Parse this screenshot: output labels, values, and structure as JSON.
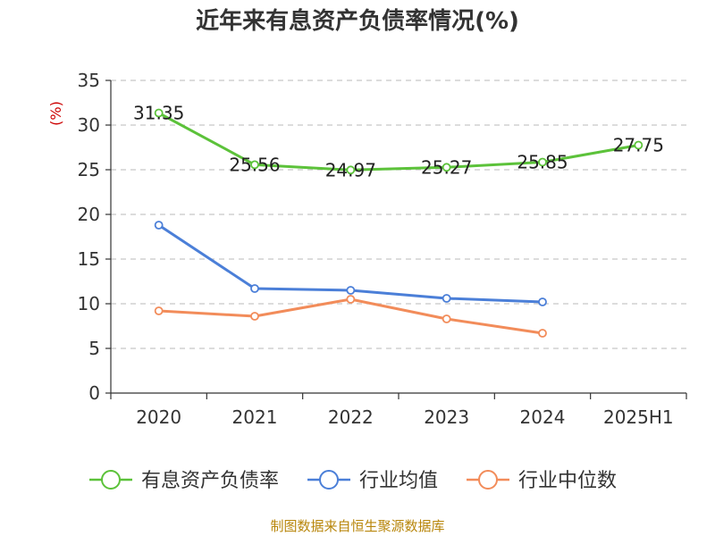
{
  "chart_data": {
    "type": "line",
    "title": "近年来有息资产负债率情况(%)",
    "ylabel": "(%)",
    "xlabel": "",
    "categories": [
      "2020",
      "2021",
      "2022",
      "2023",
      "2024",
      "2025H1"
    ],
    "ylim": [
      0,
      35
    ],
    "yticks": [
      0,
      5,
      10,
      15,
      20,
      25,
      30,
      35
    ],
    "grid": true,
    "legend_position": "bottom",
    "series": [
      {
        "name": "有息资产负债率",
        "color": "#5cc23a",
        "values": [
          31.35,
          25.56,
          24.97,
          25.27,
          25.85,
          27.75
        ],
        "labels": [
          "31.35",
          "25.56",
          "24.97",
          "25.27",
          "25.85",
          "27.75"
        ]
      },
      {
        "name": "行业均值",
        "color": "#4b7fd8",
        "values": [
          18.8,
          11.7,
          11.5,
          10.6,
          10.2,
          null
        ]
      },
      {
        "name": "行业中位数",
        "color": "#f28c5a",
        "values": [
          9.2,
          8.6,
          10.5,
          8.3,
          6.7,
          null
        ]
      }
    ],
    "source": "制图数据来自恒生聚源数据库"
  }
}
